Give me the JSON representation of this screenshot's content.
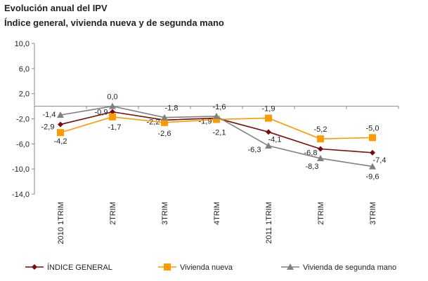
{
  "chart_data": {
    "type": "line",
    "title": "Evolución anual del IPV",
    "subtitle": "Índice general, vivienda nueva y de segunda mano",
    "categories": [
      "2010 1TRIM",
      "2TRIM",
      "3TRIM",
      "4TRIM",
      "2011 1TRIM",
      "2TRIM",
      "3TRIM"
    ],
    "ylim": [
      -14,
      10
    ],
    "yticks": [
      "10,0",
      "6,0",
      "2,0",
      "-2,0",
      "-6,0",
      "-10,0",
      "-14,0"
    ],
    "ytick_values": [
      10,
      6,
      2,
      -2,
      -6,
      -10,
      -14
    ],
    "grid": false,
    "legend": "bottom",
    "series": [
      {
        "name": "ÍNDICE GENERAL",
        "color": "#7b0a0a",
        "marker": "diamond",
        "values": [
          -2.9,
          -0.9,
          -2.2,
          -1.9,
          -4.1,
          -6.8,
          -7.4
        ],
        "labels": [
          "-2,9",
          "-0,9",
          "-2,2",
          "-1,9",
          "-4,1",
          "-6,8",
          "-7,4"
        ]
      },
      {
        "name": "Vivienda nueva",
        "color": "#ff9900",
        "marker": "square",
        "values": [
          -4.2,
          -1.7,
          -2.6,
          -2.1,
          -1.9,
          -5.2,
          -5.0
        ],
        "labels": [
          "-4,2",
          "-1,7",
          "-2,6",
          "-2,1",
          "-1,9",
          "-5,2",
          "-5,0"
        ]
      },
      {
        "name": "Vivienda de segunda mano",
        "color": "#808080",
        "marker": "triangle",
        "values": [
          -1.4,
          0.0,
          -1.8,
          -1.6,
          -6.3,
          -8.3,
          -9.6
        ],
        "labels": [
          "-1,4",
          "0,0",
          "-1,8",
          "-1,6",
          "-6,3",
          "-8,3",
          "-9,6"
        ]
      }
    ]
  }
}
